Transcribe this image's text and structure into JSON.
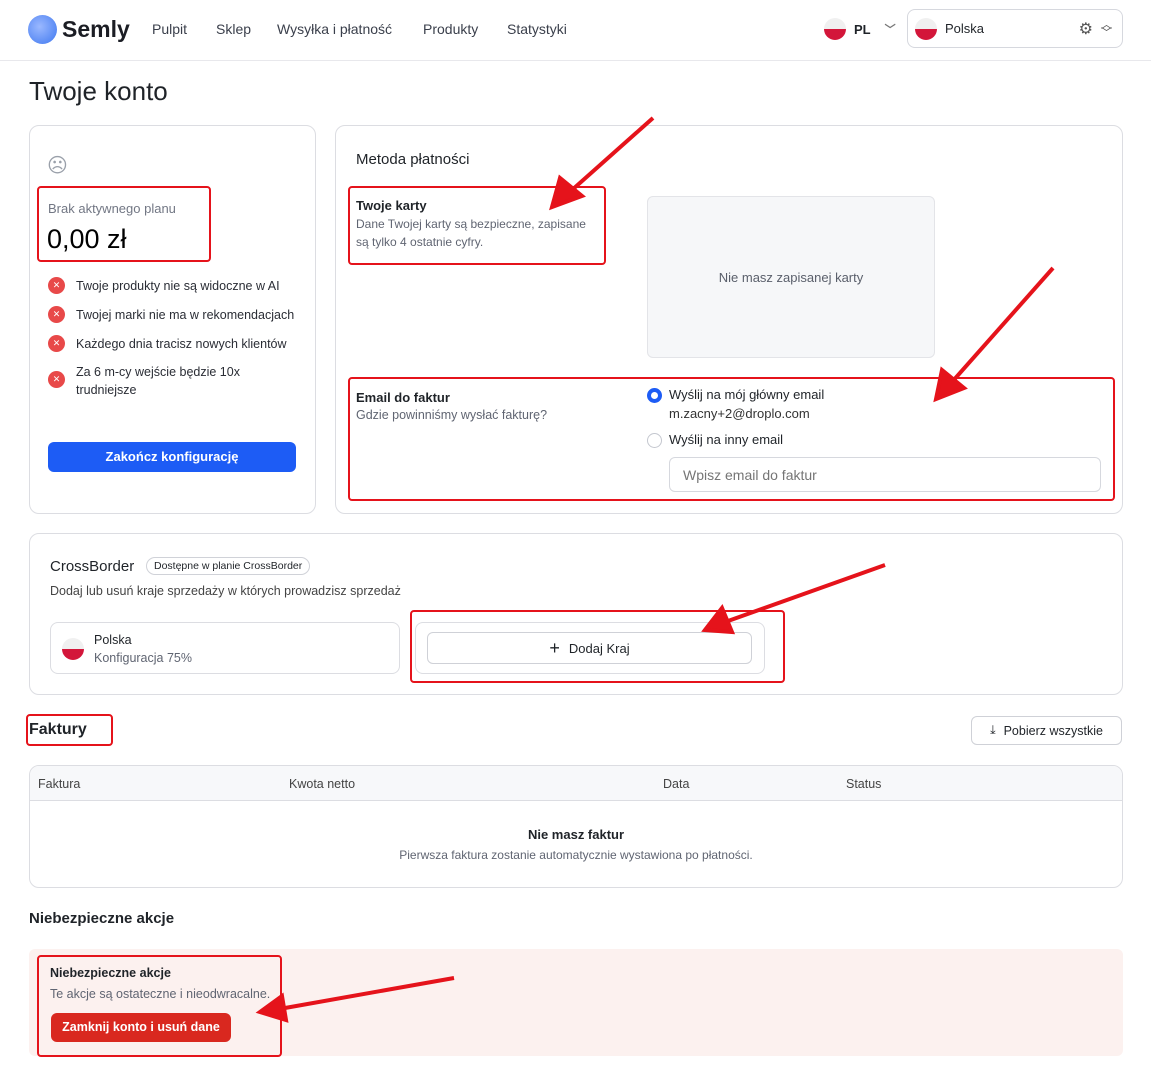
{
  "header": {
    "brand": "Semly",
    "nav": [
      "Pulpit",
      "Sklep",
      "Wysyłka i płatność",
      "Produkty",
      "Statystyki"
    ],
    "lang": "PL",
    "store": "Polska"
  },
  "page_title": "Twoje konto",
  "plan": {
    "label": "Brak aktywnego planu",
    "price": "0,00 zł",
    "items": [
      "Twoje produkty nie są widoczne w AI",
      "Twojej marki nie ma w rekomendacjach",
      "Każdego dnia tracisz nowych klientów",
      "Za 6 m-cy wejście będzie 10x trudniejsze"
    ],
    "button": "Zakończ konfigurację"
  },
  "payment": {
    "title": "Metoda płatności",
    "cards_title": "Twoje karty",
    "cards_desc": "Dane Twojej karty są bezpieczne, zapisane są tylko 4 ostatnie cyfry.",
    "no_card": "Nie masz zapisanej karty",
    "email_title": "Email do faktur",
    "email_desc": "Gdzie powinniśmy wysłać fakturę?",
    "opt1": "Wyślij na mój główny email",
    "opt1_email": "m.zacny+2@droplo.com",
    "opt2": "Wyślij na inny email",
    "email_placeholder": "Wpisz email do faktur"
  },
  "crossborder": {
    "title": "CrossBorder",
    "badge": "Dostępne w planie CrossBorder",
    "desc": "Dodaj lub usuń kraje sprzedaży w których prowadzisz sprzedaż",
    "country": "Polska",
    "country_status": "Konfiguracja 75%",
    "add": "Dodaj Kraj"
  },
  "invoices": {
    "title": "Faktury",
    "download": "Pobierz wszystkie",
    "columns": [
      "Faktura",
      "Kwota netto",
      "Data",
      "Status"
    ],
    "empty_title": "Nie masz faktur",
    "empty_desc": "Pierwsza faktura zostanie automatycznie wystawiona po płatności."
  },
  "danger": {
    "heading": "Niebezpieczne akcje",
    "title": "Niebezpieczne akcje",
    "desc": "Te akcje są ostateczne i nieodwracalne.",
    "button": "Zamknij konto i usuń dane"
  },
  "colors": {
    "primary": "#2563eb",
    "danger": "#dc2626",
    "annotation": "#e5131b"
  }
}
